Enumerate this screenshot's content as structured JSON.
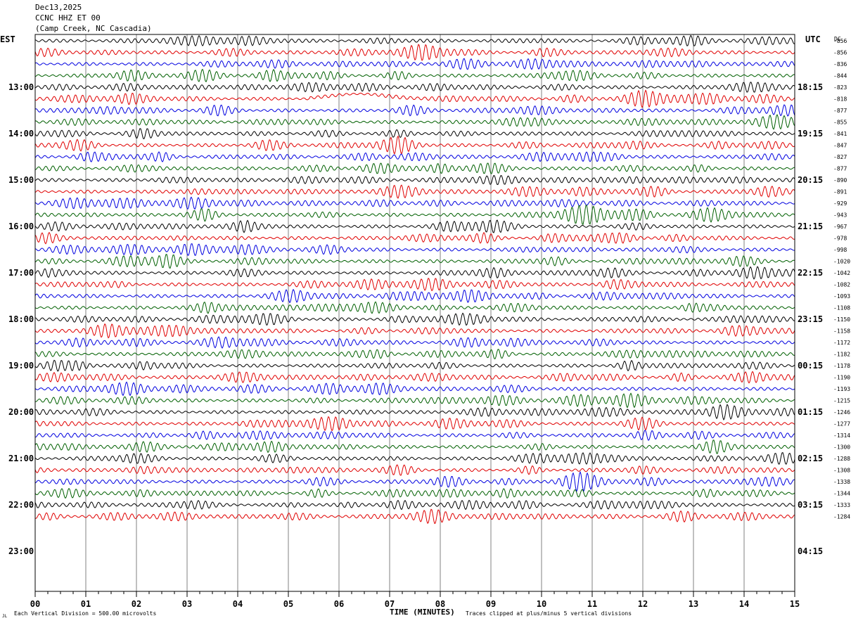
{
  "header": {
    "date": "Dec13,2025",
    "station": "CCNC HHZ ET 00",
    "location": "(Camp Creek, NC Cascadia)"
  },
  "left_tz": "EST",
  "right_tz": "UTC",
  "dc_header": "DC",
  "footer": {
    "corner_mark": "JL",
    "vertical_division": "Each Vertical Division =  500.00 microvolts",
    "x_axis_label": "TIME (MINUTES)",
    "clip_note": "Traces clipped at plus/minus 5 vertical divisions"
  },
  "colors": {
    "trace_cycle": [
      "#000000",
      "#e00000",
      "#0000e0",
      "#006000"
    ],
    "grid": "#808080",
    "frame": "#000000"
  },
  "chart_data": {
    "type": "line",
    "title": "",
    "xlabel": "TIME (MINUTES)",
    "ylabel": "",
    "x_range": [
      0,
      15
    ],
    "x_ticks": [
      "00",
      "01",
      "02",
      "03",
      "04",
      "05",
      "06",
      "07",
      "08",
      "09",
      "10",
      "11",
      "12",
      "13",
      "14",
      "15"
    ],
    "trace_interval_minutes": 15,
    "grid": true,
    "hour_labels_left": [
      "13:00",
      "14:00",
      "15:00",
      "16:00",
      "17:00",
      "18:00",
      "19:00",
      "20:00",
      "21:00",
      "22:00",
      "23:00"
    ],
    "hour_labels_right": [
      "18:15",
      "19:15",
      "20:15",
      "21:15",
      "22:15",
      "23:15",
      "00:15",
      "01:15",
      "02:15",
      "03:15",
      "04:15"
    ],
    "dc_offsets": [
      -856,
      -856,
      -836,
      -844,
      -823,
      -818,
      -877,
      -855,
      -841,
      -847,
      -827,
      -877,
      -890,
      -891,
      -929,
      -943,
      -967,
      -978,
      -998,
      -1020,
      -1042,
      -1082,
      -1093,
      -1108,
      -1150,
      -1158,
      -1172,
      -1182,
      -1178,
      -1190,
      -1193,
      -1215,
      -1246,
      -1277,
      -1314,
      -1300,
      -1288,
      -1308,
      -1338,
      -1344,
      -1333,
      -1284
    ]
  }
}
